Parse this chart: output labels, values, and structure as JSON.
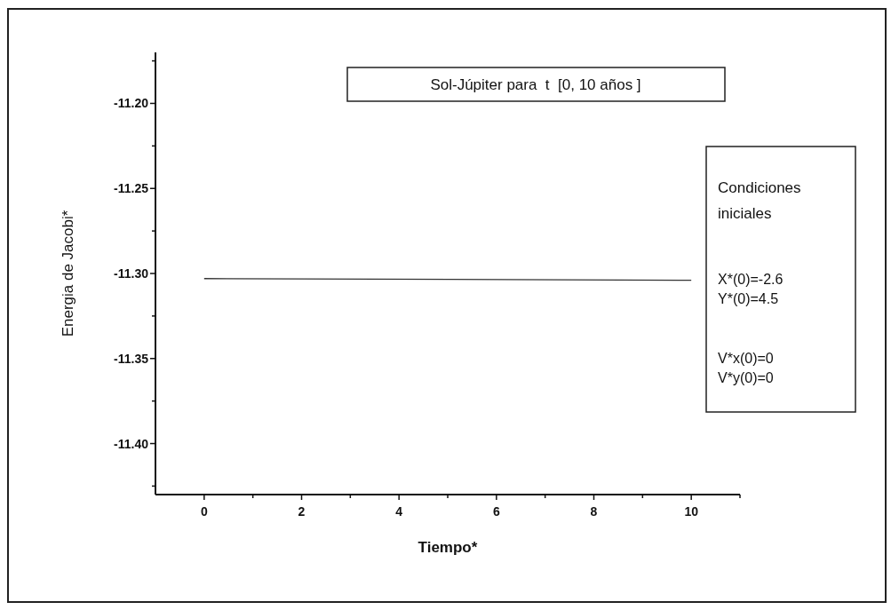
{
  "chart_data": {
    "type": "line",
    "title": "Sol-Júpiter para  t  [0, 10 años ]",
    "xlabel": "Tiempo*",
    "ylabel": "Energia de Jacobi*",
    "annotations": [
      "Condiciones iniciales",
      "X*(0)=-2.6",
      "Y*(0)=4.5",
      "V*x(0)=0",
      "V*y(0)=0"
    ],
    "series": [
      {
        "color": "#333333",
        "x": [
          0,
          10
        ],
        "values": [
          -11.303,
          -11.304
        ]
      }
    ],
    "xlim": [
      -1,
      11
    ],
    "xticks": [
      0,
      {
        "value": 1,
        "label": null
      },
      2,
      {
        "value": 3,
        "label": null
      },
      4,
      {
        "value": 5,
        "label": null
      },
      6,
      {
        "value": 7,
        "label": null
      },
      8,
      {
        "value": 9,
        "label": null
      },
      10,
      {
        "value": 11,
        "label": null
      }
    ],
    "ylim": [
      -11.43,
      -11.17
    ],
    "yticks": [
      {
        "value": -11.425,
        "label": null
      },
      {
        "value": -11.4,
        "label": "-11.40"
      },
      {
        "value": -11.375,
        "label": null
      },
      {
        "value": -11.35,
        "label": "-11.35"
      },
      {
        "value": -11.325,
        "label": null
      },
      {
        "value": -11.3,
        "label": "-11.30"
      },
      {
        "value": -11.275,
        "label": null
      },
      {
        "value": -11.25,
        "label": "-11.25"
      },
      {
        "value": -11.225,
        "label": null
      },
      {
        "value": -11.2,
        "label": "-11.20"
      },
      {
        "value": -11.175,
        "label": null
      }
    ],
    "marker": "none",
    "line_style": "solid"
  }
}
